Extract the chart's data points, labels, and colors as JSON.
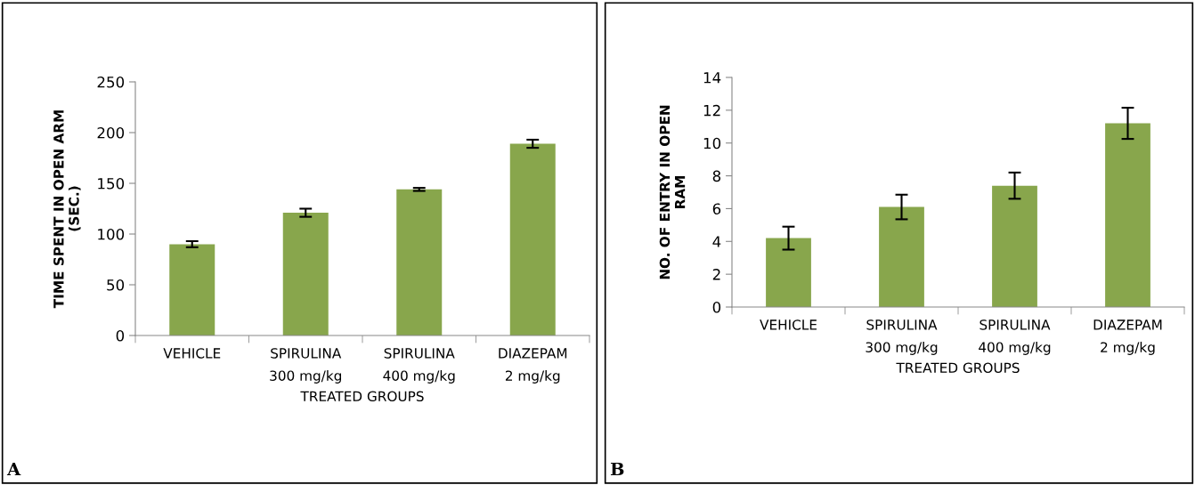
{
  "chart_data": [
    {
      "type": "bar",
      "categories": [
        "VEHICLE",
        "SPIRULINA\n300 mg/kg",
        "SPIRULINA\n400 mg/kg",
        "DIAZEPAM\n2 mg/kg"
      ],
      "values": [
        90,
        121,
        144,
        189
      ],
      "errors": [
        3,
        4,
        1.5,
        4
      ],
      "color": "#88a64c",
      "xlabel": "TREATED GROUPS",
      "ylabel": "TIME SPENT IN OPEN ARM\n(SEC.)",
      "ylim": [
        0,
        250
      ],
      "yticks": [
        0,
        50,
        100,
        150,
        200,
        250
      ],
      "grid": false,
      "annotations": [
        "A"
      ]
    },
    {
      "type": "bar",
      "categories": [
        "VEHICLE",
        "SPIRULINA\n300 mg/kg",
        "SPIRULINA\n400 mg/kg",
        "DIAZEPAM\n2 mg/kg"
      ],
      "values": [
        4.2,
        6.1,
        7.4,
        11.2
      ],
      "errors": [
        0.7,
        0.75,
        0.8,
        0.95
      ],
      "color": "#88a64c",
      "xlabel": "TREATED GROUPS",
      "ylabel": "NO. OF ENTRY IN OPEN\nRAM",
      "ylim": [
        0,
        14
      ],
      "yticks": [
        0,
        2,
        4,
        6,
        8,
        10,
        12,
        14
      ],
      "grid": false,
      "annotations": [
        "B"
      ]
    }
  ]
}
